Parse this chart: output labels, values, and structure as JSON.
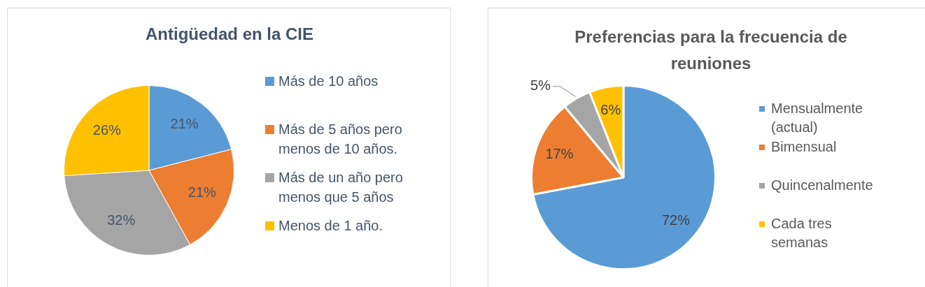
{
  "chart_data": [
    {
      "type": "pie",
      "title": "Antigüedad en la CIE",
      "categories": [
        "Más de 10 años",
        "Más de 5 años pero menos de 10 años.",
        "Más de un año pero menos que 5 años",
        "Menos de 1 año."
      ],
      "values": [
        21,
        21,
        32,
        26
      ],
      "colors": [
        "#5b9bd5",
        "#ed7d31",
        "#a5a5a5",
        "#ffc000"
      ],
      "value_labels": [
        "21%",
        "21%",
        "32%",
        "26%"
      ],
      "legend": "right"
    },
    {
      "type": "pie",
      "title": "Preferencias para la frecuencia de reuniones",
      "categories": [
        "Mensualmente (actual)",
        "Bimensual",
        "Quincenalmente",
        "Cada tres semanas"
      ],
      "values": [
        72,
        17,
        5,
        6
      ],
      "colors": [
        "#5b9bd5",
        "#ed7d31",
        "#a5a5a5",
        "#ffc000"
      ],
      "value_labels": [
        "72%",
        "17%",
        "5%",
        "6%"
      ],
      "legend": "right"
    }
  ]
}
